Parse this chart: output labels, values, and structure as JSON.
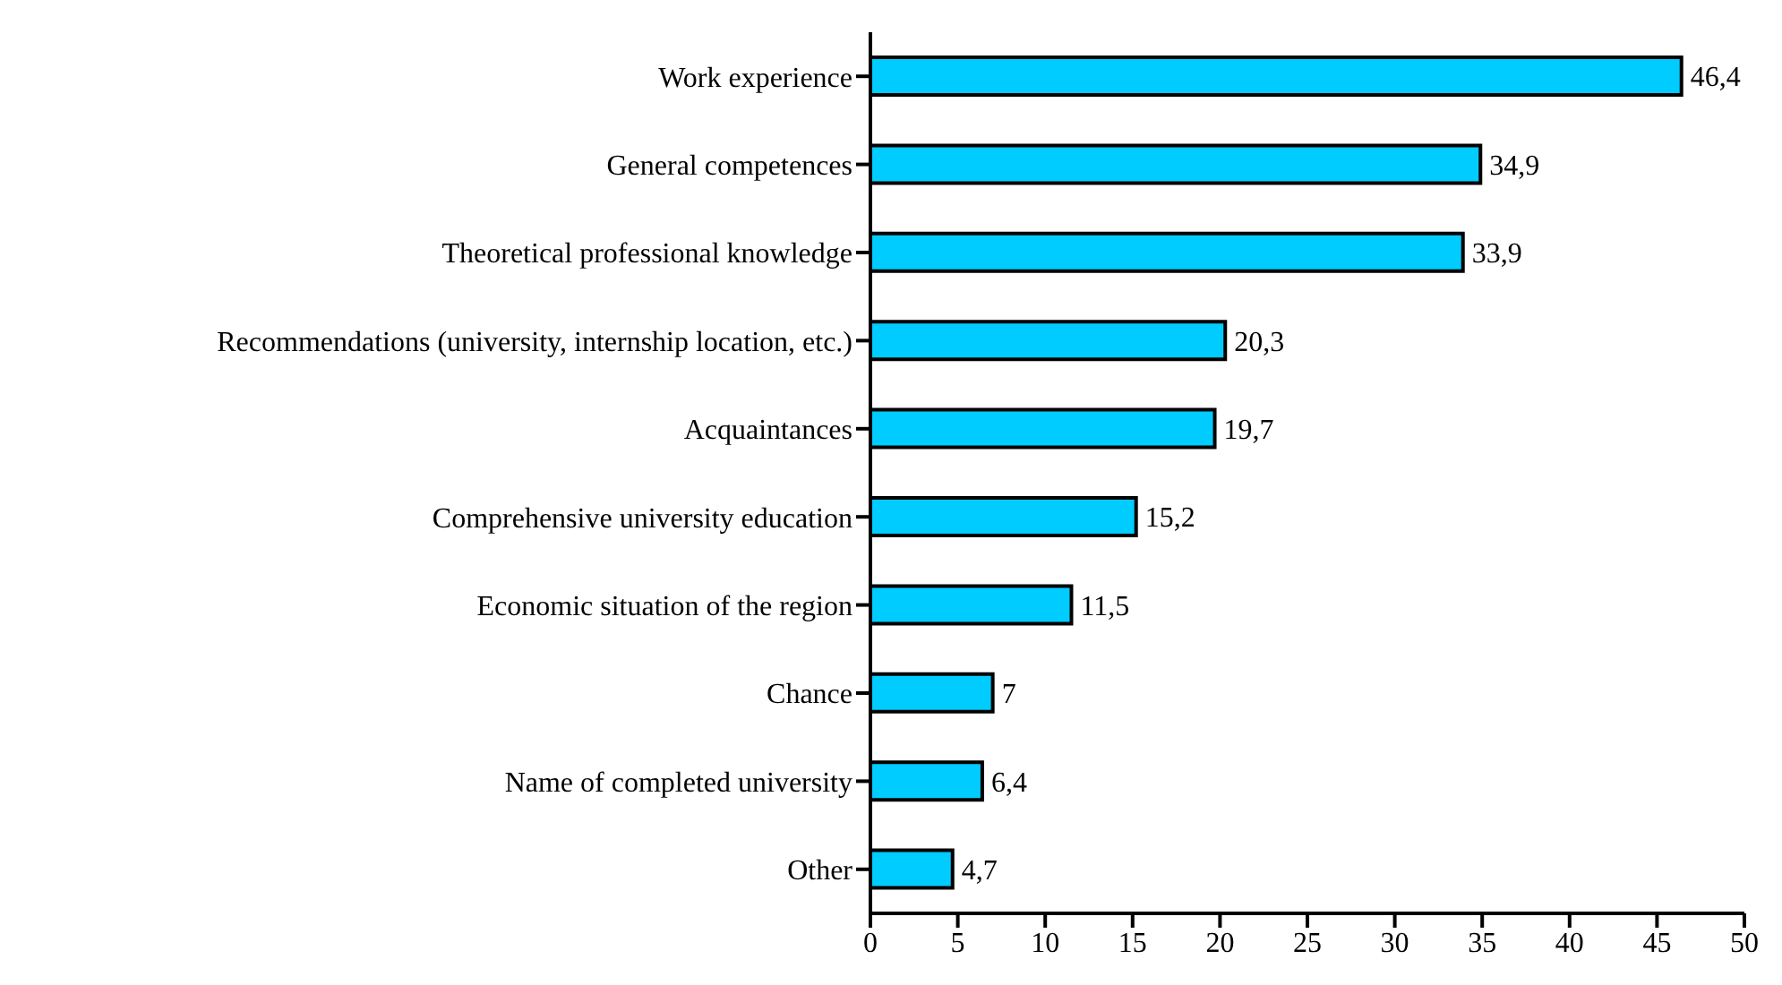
{
  "chart_data": {
    "type": "bar",
    "orientation": "horizontal",
    "categories": [
      "Work experience",
      "General competences",
      "Theoretical professional knowledge",
      "Recommendations (university, internship location, etc.)",
      "Acquaintances",
      "Comprehensive university education",
      "Economic situation of the region",
      "Chance",
      "Name of completed university",
      "Other"
    ],
    "values": [
      46.4,
      34.9,
      33.9,
      20.3,
      19.7,
      15.2,
      11.5,
      7,
      6.4,
      4.7
    ],
    "value_labels": [
      "46,4",
      "34,9",
      "33,9",
      "20,3",
      "19,7",
      "15,2",
      "11,5",
      "7",
      "6,4",
      "4,7"
    ],
    "color": "#00ccff",
    "xlim": [
      0,
      50
    ],
    "xticks": [
      0,
      5,
      10,
      15,
      20,
      25,
      30,
      35,
      40,
      45,
      50
    ],
    "grid": false,
    "legend": false
  }
}
